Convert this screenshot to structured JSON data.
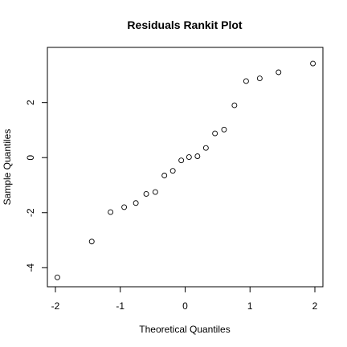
{
  "chart_data": {
    "type": "scatter",
    "title": "Residuals Rankit Plot",
    "xlabel": "Theoretical Quantiles",
    "ylabel": "Sample Quantiles",
    "xlim": [
      -2.0,
      2.0
    ],
    "ylim": [
      -4.4,
      3.8
    ],
    "x_ticks": [
      -2,
      -1,
      0,
      1,
      2
    ],
    "x_tick_labels": [
      "-2",
      "-1",
      "0",
      "1",
      "2"
    ],
    "y_ticks": [
      -4,
      -2,
      0,
      2
    ],
    "y_tick_labels": [
      "-4",
      "-2",
      "0",
      "2"
    ],
    "grid": false,
    "points": [
      {
        "x": -1.97,
        "y": -4.35
      },
      {
        "x": -1.44,
        "y": -3.05
      },
      {
        "x": -1.15,
        "y": -1.98
      },
      {
        "x": -0.94,
        "y": -1.8
      },
      {
        "x": -0.76,
        "y": -1.65
      },
      {
        "x": -0.6,
        "y": -1.32
      },
      {
        "x": -0.46,
        "y": -1.25
      },
      {
        "x": -0.32,
        "y": -0.65
      },
      {
        "x": -0.19,
        "y": -0.48
      },
      {
        "x": -0.06,
        "y": -0.1
      },
      {
        "x": 0.06,
        "y": 0.02
      },
      {
        "x": 0.19,
        "y": 0.05
      },
      {
        "x": 0.32,
        "y": 0.35
      },
      {
        "x": 0.46,
        "y": 0.88
      },
      {
        "x": 0.6,
        "y": 1.02
      },
      {
        "x": 0.76,
        "y": 1.9
      },
      {
        "x": 0.94,
        "y": 2.78
      },
      {
        "x": 1.15,
        "y": 2.88
      },
      {
        "x": 1.44,
        "y": 3.1
      },
      {
        "x": 1.97,
        "y": 3.42
      }
    ]
  }
}
